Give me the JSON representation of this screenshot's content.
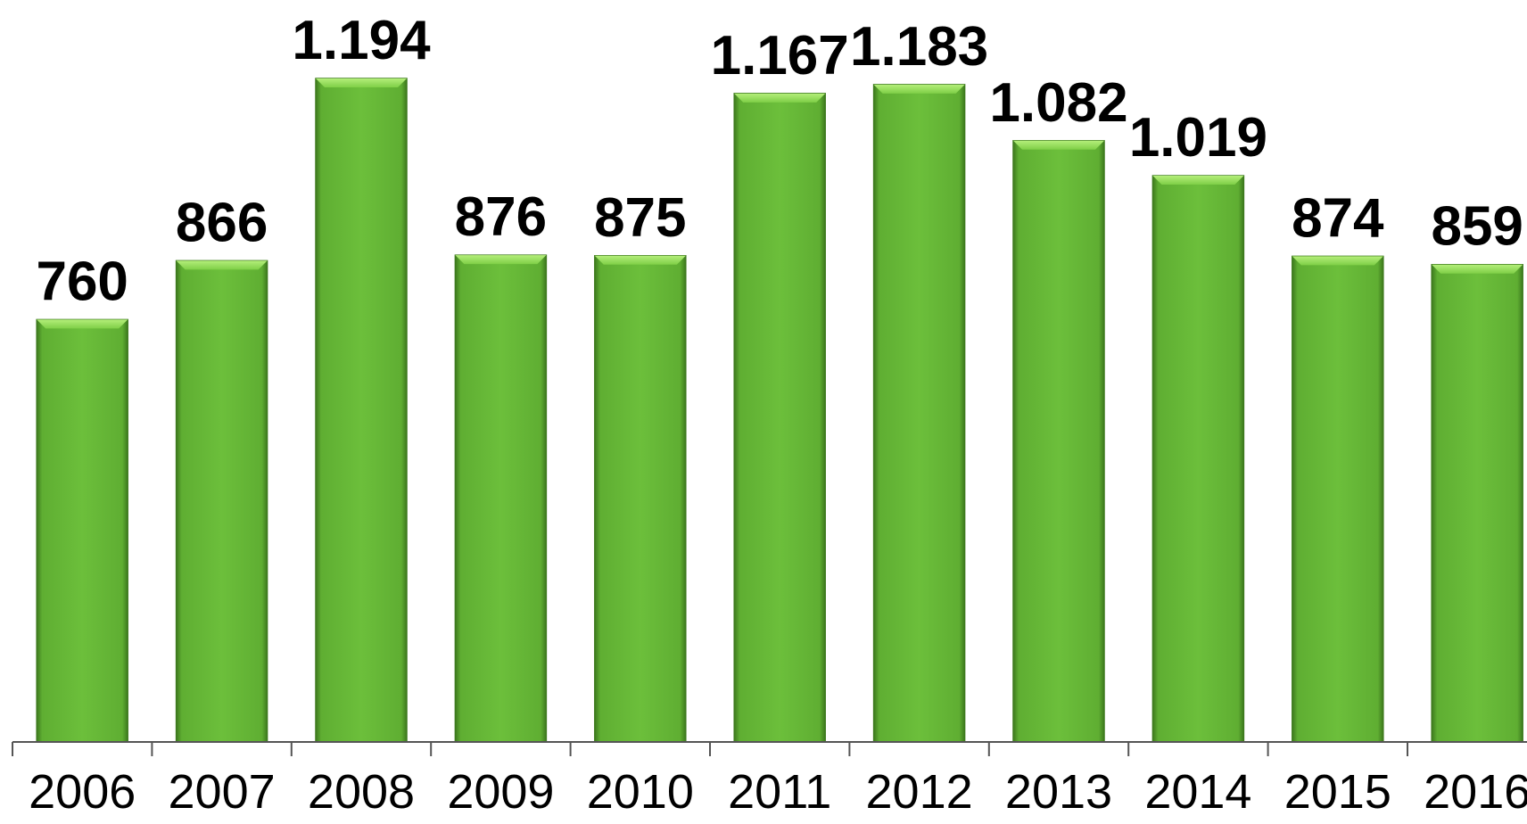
{
  "chart_data": {
    "type": "bar",
    "categories": [
      "2006",
      "2007",
      "2008",
      "2009",
      "2010",
      "2011",
      "2012",
      "2013",
      "2014",
      "2015",
      "2016"
    ],
    "values": [
      760,
      866,
      1194,
      876,
      875,
      1167,
      1183,
      1082,
      1019,
      874,
      859
    ],
    "data_labels": [
      "760",
      "866",
      "1.194",
      "876",
      "875",
      "1.167",
      "1.183",
      "1.082",
      "1.019",
      "874",
      "859"
    ],
    "title": "",
    "xlabel": "",
    "ylabel": "",
    "ylim": [
      0,
      1194
    ],
    "grid": false,
    "legend": "none",
    "bar_color": "#6CBF3B",
    "bar_edge_color": "#3E7A1E",
    "bar_highlight_color": "#9BE05E",
    "axis_color": "#555555"
  }
}
